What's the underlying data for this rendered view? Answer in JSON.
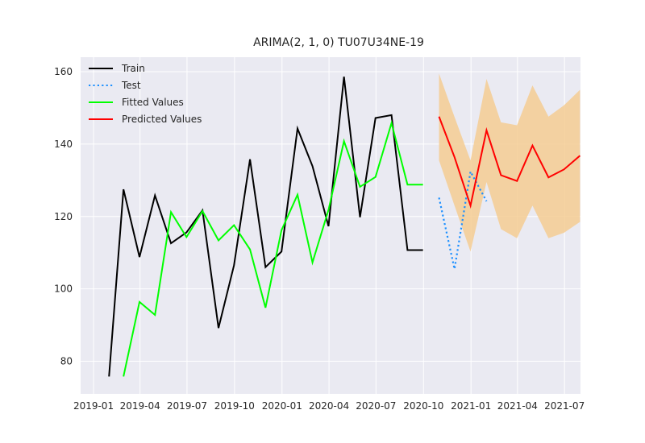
{
  "colors": {
    "background": "#eaeaf2",
    "grid": "#ffffff",
    "train": "#000000",
    "test": "#1e90ff",
    "fitted": "#00ff00",
    "predicted": "#ff0000",
    "interval": "#f5cd93"
  },
  "chart_data": {
    "type": "line",
    "title": "ARIMA(2, 1, 0) TU07U34NE-19",
    "xlabel": "",
    "ylabel": "",
    "grid": true,
    "legend_position": "top-left",
    "xlim": [
      "2018-12-07",
      "2021-08-01"
    ],
    "ylim": [
      71,
      164
    ],
    "x_ticks": [
      "2019-01",
      "2019-04",
      "2019-07",
      "2019-10",
      "2020-01",
      "2020-04",
      "2020-07",
      "2020-10",
      "2021-01",
      "2021-04",
      "2021-07"
    ],
    "y_ticks": [
      80,
      100,
      120,
      140,
      160
    ],
    "series": [
      {
        "name": "Train",
        "style": "solid",
        "x": [
          "2019-01-31",
          "2019-02-28",
          "2019-03-31",
          "2019-04-30",
          "2019-05-31",
          "2019-06-30",
          "2019-07-31",
          "2019-08-31",
          "2019-09-30",
          "2019-10-31",
          "2019-11-30",
          "2019-12-31",
          "2020-01-31",
          "2020-02-29",
          "2020-03-31",
          "2020-04-30",
          "2020-05-31",
          "2020-06-30",
          "2020-07-31",
          "2020-08-31",
          "2020-09-30"
        ],
        "values": [
          75.8,
          127.5,
          108.8,
          125.8,
          112.6,
          115.6,
          121.7,
          89.2,
          106.5,
          135.8,
          106.0,
          110.3,
          144.3,
          133.9,
          117.3,
          158.6,
          119.8,
          147.2,
          148.0,
          110.7,
          110.7
        ]
      },
      {
        "name": "Test",
        "style": "dotted",
        "x": [
          "2020-10-31",
          "2020-11-30",
          "2020-12-31",
          "2021-01-31"
        ],
        "values": [
          125.2,
          105.5,
          132.4,
          124.2
        ]
      },
      {
        "name": "Fitted Values",
        "style": "solid",
        "x": [
          "2019-02-28",
          "2019-03-31",
          "2019-04-30",
          "2019-05-31",
          "2019-06-30",
          "2019-07-31",
          "2019-08-31",
          "2019-09-30",
          "2019-10-31",
          "2019-11-30",
          "2019-12-31",
          "2020-01-31",
          "2020-02-29",
          "2020-03-31",
          "2020-04-30",
          "2020-05-31",
          "2020-06-30",
          "2020-07-31",
          "2020-08-31",
          "2020-09-30"
        ],
        "values": [
          75.8,
          96.4,
          92.8,
          121.2,
          114.3,
          121.5,
          113.4,
          117.6,
          110.9,
          94.8,
          116.2,
          126.0,
          107.3,
          121.8,
          140.8,
          128.2,
          130.9,
          145.8,
          128.8,
          128.8
        ]
      },
      {
        "name": "Predicted Values",
        "style": "solid",
        "x": [
          "2020-10-31",
          "2020-11-30",
          "2020-12-31",
          "2021-01-31",
          "2021-02-28",
          "2021-03-31",
          "2021-04-30",
          "2021-05-31",
          "2021-06-30",
          "2021-07-31"
        ],
        "values": [
          147.6,
          136.4,
          123.0,
          143.8,
          131.4,
          129.8,
          139.6,
          130.8,
          133.0,
          136.8
        ]
      }
    ],
    "confidence_interval": {
      "x": [
        "2020-10-31",
        "2020-11-30",
        "2020-12-31",
        "2021-01-31",
        "2021-02-28",
        "2021-03-31",
        "2021-04-30",
        "2021-05-31",
        "2021-06-30",
        "2021-07-31"
      ],
      "lower": [
        135.5,
        123.0,
        110.3,
        129.5,
        116.5,
        114.0,
        123.0,
        114.0,
        115.5,
        118.5
      ],
      "upper": [
        159.5,
        147.5,
        135.5,
        158.0,
        146.0,
        145.2,
        156.2,
        147.6,
        150.7,
        155.0
      ]
    }
  }
}
